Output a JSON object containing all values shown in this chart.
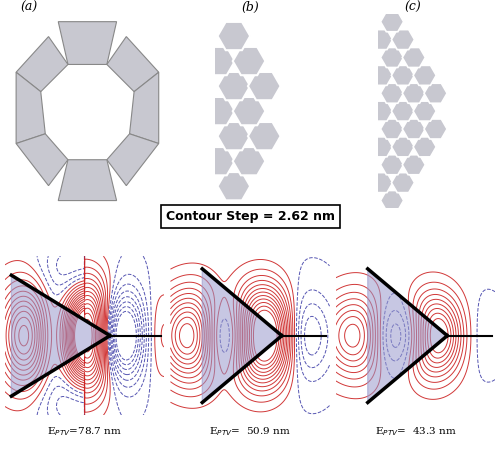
{
  "title_a": "(a)",
  "title_b": "(b)",
  "title_c": "(c)",
  "contour_step_text": "Contour Step = 2.62 nm",
  "label_a": "E$_{PTV}$=78.7 nm",
  "label_b": "E$_{PTV}$=  50.9 nm",
  "label_c": "E$_{PTV}$=  43.3 nm",
  "bg_color": "#ffffff",
  "seg_color": "#c8c8d0",
  "edge_color_a": "#888888",
  "edge_color_bc": "#ffffff",
  "blue_contour": "#4444aa",
  "red_contour": "#cc2222",
  "fig_width": 5.0,
  "fig_height": 4.63
}
